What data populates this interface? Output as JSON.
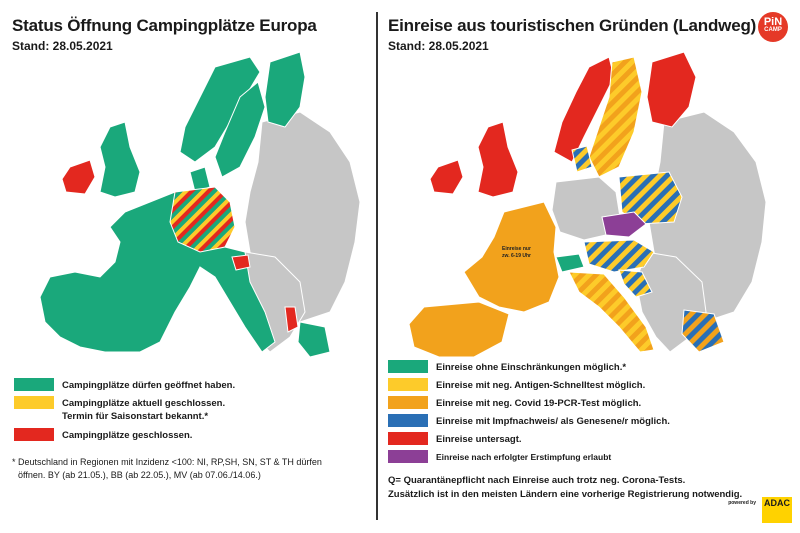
{
  "colors": {
    "green": "#1aa87b",
    "yellow": "#fdcb2a",
    "orange": "#f2a21c",
    "blue": "#2a6fb5",
    "red": "#e3281f",
    "purple": "#8c3f96",
    "grey": "#c6c6c6",
    "brand": "#e53927",
    "adac_yellow": "#ffd200"
  },
  "left": {
    "title": "Status Öffnung Campingplätze Europa",
    "stand": "Stand: 28.05.2021",
    "legend": [
      {
        "color_key": "green",
        "text": "Campingplätze dürfen geöffnet haben."
      },
      {
        "color_key": "yellow",
        "text": "Campingplätze aktuell geschlossen.",
        "text2": "Termin für Saisonstart bekannt.*"
      },
      {
        "color_key": "red",
        "text": "Campingplätze geschlossen."
      }
    ],
    "footnote_line1": "* Deutschland in Regionen mit Inzidenz <100:  NI, RP,SH, SN, ST & TH dürfen",
    "footnote_line2": "öffnen. BY (ab 21.05.), BB (ab 22.05.), MV (ab 07.06./14.06.)"
  },
  "right": {
    "title": "Einreise aus touristischen Gründen (Landweg)",
    "stand": "Stand: 28.05.2021",
    "logo_top": "PiN",
    "logo_bottom": "CAMP",
    "france_label_1": "Einreise nur",
    "france_label_2": "zw. 6-19 Uhr",
    "legend": [
      {
        "color_key": "green",
        "text": "Einreise ohne Einschränkungen möglich.*"
      },
      {
        "color_key": "yellow",
        "text": "Einreise mit neg. Antigen-Schnelltest möglich."
      },
      {
        "color_key": "orange",
        "text": "Einreise mit neg. Covid 19-PCR-Test möglich."
      },
      {
        "color_key": "blue",
        "text": "Einreise mit Impfnachweis/ als Genesene/r möglich."
      },
      {
        "color_key": "red",
        "text": "Einreise untersagt."
      },
      {
        "color_key": "purple",
        "text": "Einreise nach erfolgter Erstimpfung erlaubt"
      }
    ],
    "footnote_line1": "Q= Quarantänepflicht nach Einreise auch trotz neg. Corona-Tests.",
    "footnote_line2": "Zusätzlich ist in den meisten Ländern eine vorherige Registrierung notwendig.",
    "powered_by": "powered by",
    "adac": "ADAC"
  }
}
